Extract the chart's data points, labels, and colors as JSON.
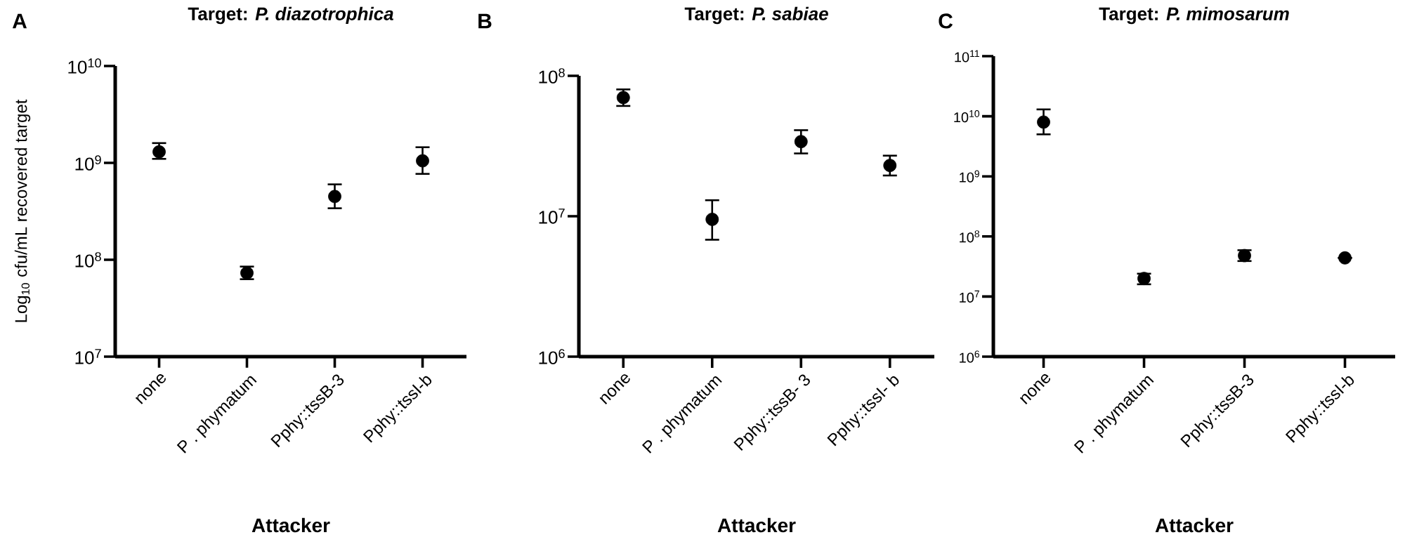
{
  "chart_data": [
    {
      "type": "scatter",
      "title": "Target: *P. diazotrophica*",
      "xlabel": "Attacker",
      "ylabel": "Log$_{10}$ cfu/mL recovered target",
      "annotations": [
        "A"
      ],
      "categories": [
        "none",
        "P . phymatum",
        "Pphy::tssB-3",
        "Pphy::tssI-b"
      ],
      "values": [
        1300000000.0,
        73000000.0,
        450000000.0,
        1050000000.0
      ],
      "errors": [
        [
          1100000000.0,
          1600000000.0
        ],
        [
          63000000.0,
          85000000.0
        ],
        [
          340000000.0,
          600000000.0
        ],
        [
          770000000.0,
          1450000000.0
        ]
      ],
      "color": "#000000",
      "marker": "circle",
      "log": true,
      "ylim": [
        10000000.0,
        10000000000.0
      ],
      "yticks": [
        {
          "value": 10000000.0,
          "label": "10$^{7}$"
        },
        {
          "value": 100000000.0,
          "label": "10$^{8}$"
        },
        {
          "value": 1000000000.0,
          "label": "10$^{9}$"
        },
        {
          "value": 10000000000.0,
          "label": "10$^{10}$"
        }
      ]
    },
    {
      "type": "scatter",
      "title": "Target: *P. sabiae*",
      "xlabel": "Attacker",
      "annotations": [
        "B"
      ],
      "categories": [
        "none",
        "P . phymatum",
        "Pphy::tssB- 3",
        "Pphy::tssI- b"
      ],
      "values": [
        70000000.0,
        9500000.0,
        34000000.0,
        23000000.0
      ],
      "errors": [
        [
          61000000.0,
          80000000.0
        ],
        [
          6800000.0,
          13000000.0
        ],
        [
          28000000.0,
          41000000.0
        ],
        [
          19500000.0,
          27000000.0
        ]
      ],
      "color": "#000000",
      "marker": "circle",
      "log": true,
      "ylim": [
        1000000.0,
        100000000.0
      ],
      "yticks": [
        {
          "value": 1000000.0,
          "label": "10$^{6}$"
        },
        {
          "value": 10000000.0,
          "label": "10$^{7}$"
        },
        {
          "value": 100000000.0,
          "label": "10$^{8}$"
        }
      ]
    },
    {
      "type": "scatter",
      "title": "Target: *P. mimosarum*",
      "xlabel": "Attacker",
      "annotations": [
        "C"
      ],
      "categories": [
        "none",
        "P . phymatum",
        "Pphy::tssB-3",
        "Pphy::tssI-b"
      ],
      "values": [
        8000000000.0,
        20000000.0,
        48000000.0,
        44000000.0
      ],
      "errors": [
        [
          5000000000.0,
          13000000000.0
        ],
        [
          16000000.0,
          24000000.0
        ],
        [
          39000000.0,
          59000000.0
        ],
        null
      ],
      "color": "#000000",
      "marker": "circle",
      "log": true,
      "ylim": [
        1000000.0,
        100000000000.0
      ],
      "yticks": [
        {
          "value": 1000000.0,
          "label": "10$^{6}$"
        },
        {
          "value": 10000000.0,
          "label": "10$^{7}$"
        },
        {
          "value": 100000000.0,
          "label": "10$^{8}$"
        },
        {
          "value": 1000000000.0,
          "label": "10$^{9}$"
        },
        {
          "value": 10000000000.0,
          "label": "10$^{10}$"
        },
        {
          "value": 100000000000.0,
          "label": "10$^{11}$"
        }
      ]
    }
  ]
}
